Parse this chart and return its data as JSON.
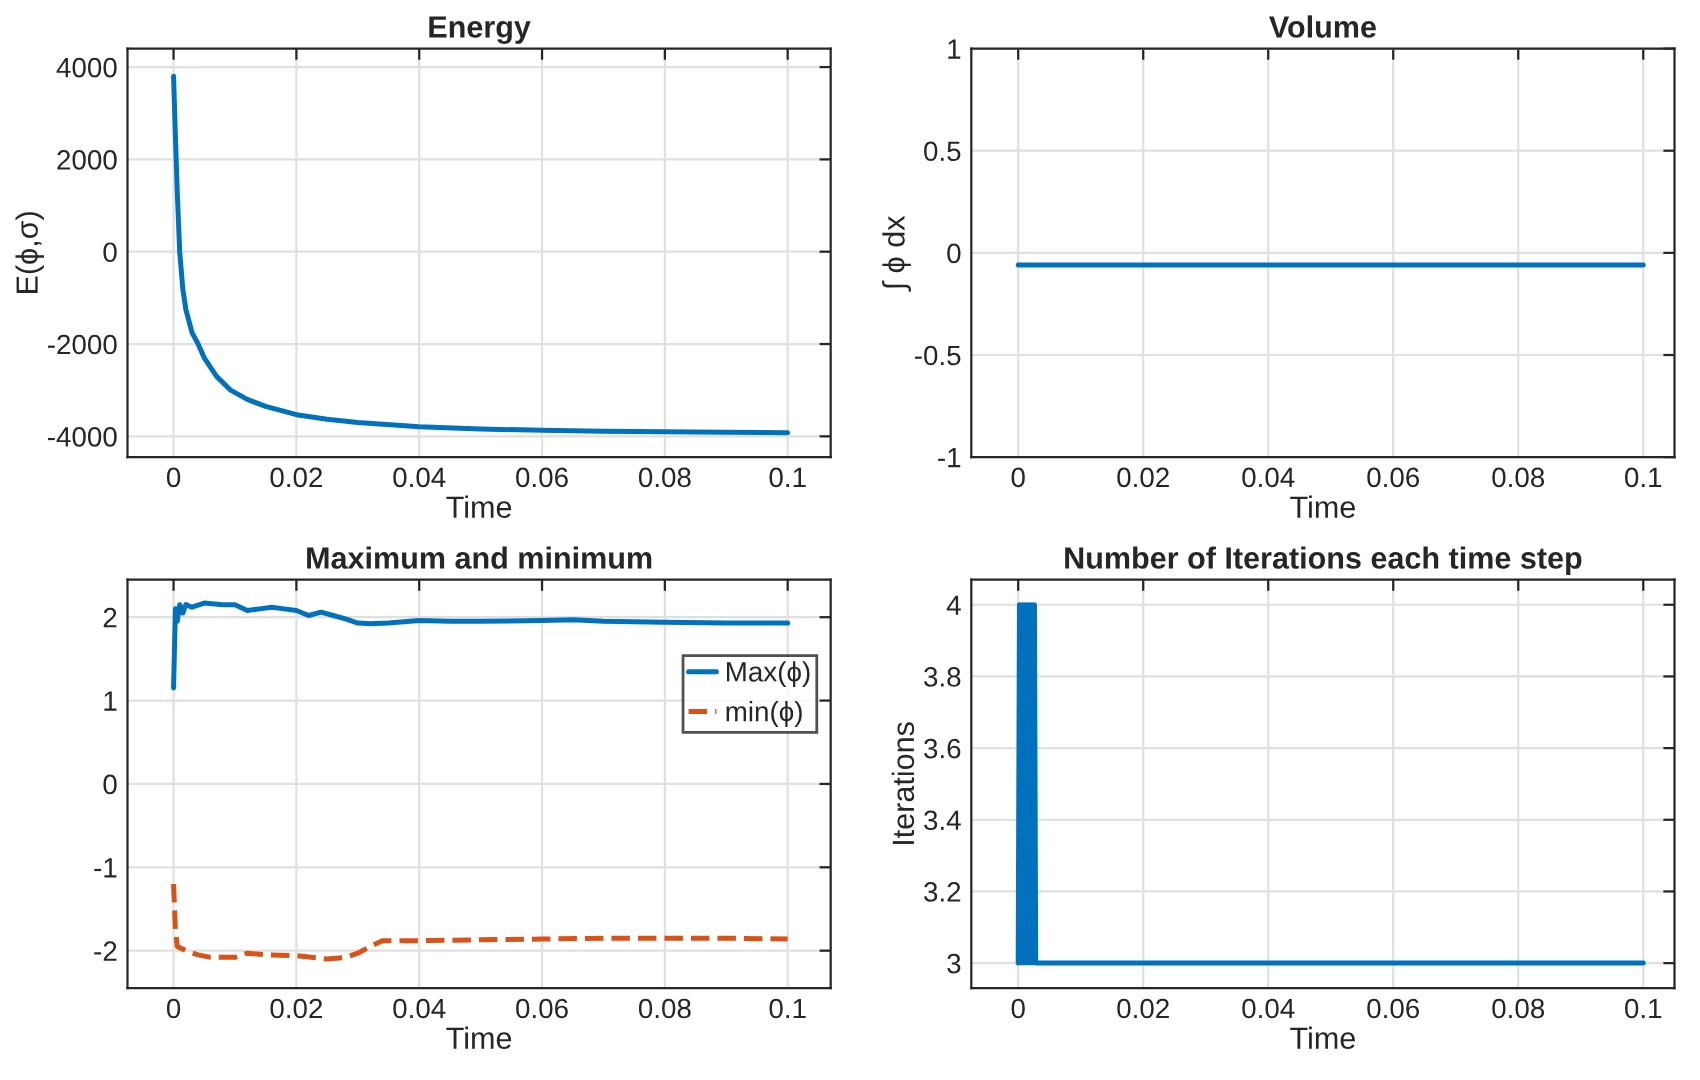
{
  "chart_data": [
    {
      "type": "line",
      "title": "Energy",
      "xlabel": "Time",
      "ylabel": "E(ϕ,σ)",
      "xlim": [
        -0.0075,
        0.107
      ],
      "ylim": [
        -4450,
        4400
      ],
      "xticks": [
        0,
        0.02,
        0.04,
        0.06,
        0.08,
        0.1
      ],
      "yticks": [
        -4000,
        -2000,
        0,
        2000,
        4000
      ],
      "grid": true,
      "series": [
        {
          "color": "#0072bd",
          "x": [
            0,
            0.0003,
            0.0006,
            0.001,
            0.0015,
            0.002,
            0.003,
            0.004,
            0.005,
            0.007,
            0.0093,
            0.012,
            0.015,
            0.02,
            0.025,
            0.03,
            0.04,
            0.05,
            0.06,
            0.07,
            0.08,
            0.09,
            0.1
          ],
          "values": [
            3800,
            2500,
            1300,
            0,
            -800,
            -1250,
            -1750,
            -2000,
            -2300,
            -2700,
            -3000,
            -3200,
            -3350,
            -3530,
            -3630,
            -3700,
            -3790,
            -3840,
            -3870,
            -3890,
            -3900,
            -3910,
            -3920
          ]
        }
      ]
    },
    {
      "type": "line",
      "title": "Volume",
      "xlabel": "Time",
      "ylabel": "∫ ϕ dx",
      "xlim": [
        -0.0075,
        0.105
      ],
      "ylim": [
        -1,
        1
      ],
      "xticks": [
        0,
        0.02,
        0.04,
        0.06,
        0.08,
        0.1
      ],
      "yticks": [
        -1,
        -0.5,
        0,
        0.5,
        1
      ],
      "grid": true,
      "series": [
        {
          "color": "#0072bd",
          "x": [
            0,
            0.1
          ],
          "values": [
            -0.06,
            -0.06
          ]
        }
      ]
    },
    {
      "type": "line",
      "title": "Maximum and minimum",
      "xlabel": "Time",
      "xlim": [
        -0.0075,
        0.107
      ],
      "ylim": [
        -2.45,
        2.45
      ],
      "xticks": [
        0,
        0.02,
        0.04,
        0.06,
        0.08,
        0.1
      ],
      "yticks": [
        -2,
        -1,
        0,
        1,
        2
      ],
      "grid": true,
      "legend": "right",
      "series": [
        {
          "name": "Max(ϕ)",
          "color": "#0072bd",
          "line_style": "solid",
          "x": [
            0,
            0.0003,
            0.0006,
            0.001,
            0.0015,
            0.002,
            0.003,
            0.005,
            0.008,
            0.01,
            0.012,
            0.014,
            0.016,
            0.018,
            0.02,
            0.022,
            0.024,
            0.026,
            0.028,
            0.03,
            0.032,
            0.035,
            0.04,
            0.045,
            0.05,
            0.06,
            0.065,
            0.07,
            0.08,
            0.09,
            0.1
          ],
          "values": [
            1.15,
            2.1,
            1.95,
            2.15,
            2.05,
            2.15,
            2.12,
            2.17,
            2.15,
            2.15,
            2.08,
            2.1,
            2.12,
            2.1,
            2.08,
            2.02,
            2.06,
            2.02,
            1.98,
            1.93,
            1.92,
            1.93,
            1.96,
            1.95,
            1.95,
            1.96,
            1.97,
            1.95,
            1.94,
            1.93,
            1.93
          ]
        },
        {
          "name": "min(ϕ)",
          "color": "#d95319",
          "line_style": "dashed",
          "x": [
            0,
            0.0003,
            0.0006,
            0.002,
            0.004,
            0.006,
            0.008,
            0.01,
            0.012,
            0.015,
            0.02,
            0.025,
            0.028,
            0.03,
            0.032,
            0.034,
            0.04,
            0.05,
            0.06,
            0.07,
            0.08,
            0.09,
            0.1
          ],
          "values": [
            -1.2,
            -1.75,
            -1.95,
            -2.0,
            -2.05,
            -2.08,
            -2.08,
            -2.08,
            -2.03,
            -2.05,
            -2.06,
            -2.1,
            -2.08,
            -2.03,
            -1.95,
            -1.88,
            -1.88,
            -1.87,
            -1.86,
            -1.85,
            -1.85,
            -1.85,
            -1.86
          ]
        }
      ]
    },
    {
      "type": "line",
      "title": "Number of Iterations each time step",
      "xlabel": "Time",
      "ylabel": "Iterations",
      "xlim": [
        -0.0075,
        0.105
      ],
      "ylim": [
        2.93,
        4.07
      ],
      "xticks": [
        0,
        0.02,
        0.04,
        0.06,
        0.08,
        0.1
      ],
      "yticks": [
        3,
        3.2,
        3.4,
        3.6,
        3.8,
        4
      ],
      "grid": true,
      "series": [
        {
          "color": "#0072bd",
          "x": [
            0,
            0.0002,
            0.0004,
            0.0006,
            0.0008,
            0.001,
            0.0012,
            0.0014,
            0.0016,
            0.0018,
            0.002,
            0.0022,
            0.0024,
            0.0026,
            0.0028,
            0.003,
            0.1
          ],
          "values": [
            3,
            4,
            3,
            4,
            3,
            4,
            3,
            4,
            3,
            4,
            3,
            4,
            3,
            4,
            3,
            3,
            3
          ]
        }
      ]
    }
  ]
}
